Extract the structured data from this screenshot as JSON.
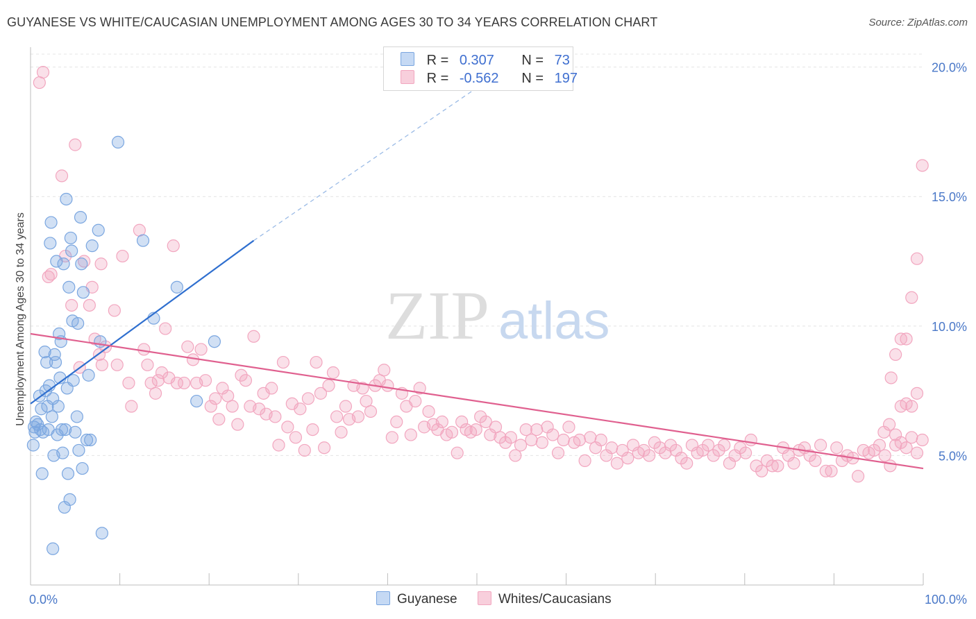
{
  "header": {
    "title": "GUYANESE VS WHITE/CAUCASIAN UNEMPLOYMENT AMONG AGES 30 TO 34 YEARS CORRELATION CHART",
    "source": "Source: ZipAtlas.com"
  },
  "watermark": {
    "zip": "ZIP",
    "atlas": "atlas"
  },
  "legend": {
    "rows": [
      {
        "r_label": "R =",
        "r_value": "0.307",
        "n_label": "N =",
        "n_value": "73",
        "color": "#a9c6ee"
      },
      {
        "r_label": "R =",
        "r_value": "-0.562",
        "n_label": "N =",
        "n_value": "197",
        "color": "#f4b7cb"
      }
    ]
  },
  "bottom_legend": [
    {
      "label": "Guyanese",
      "color": "#a9c6ee"
    },
    {
      "label": "Whites/Caucasians",
      "color": "#f4b7cb"
    }
  ],
  "chart_data": {
    "type": "scatter",
    "xlabel": "",
    "ylabel": "Unemployment Among Ages 30 to 34 years",
    "xlim": [
      0,
      100
    ],
    "ylim": [
      0,
      20.5
    ],
    "x_tick_labels": [
      "0.0%",
      "100.0%"
    ],
    "y_ticks": [
      5,
      10,
      15,
      20
    ],
    "y_tick_labels": [
      "5.0%",
      "10.0%",
      "15.0%",
      "20.0%"
    ],
    "grid": true,
    "series": [
      {
        "name": "Guyanese",
        "color": "#7aa6e0",
        "line_color": "#2f6fcf",
        "trend": {
          "x0": 0,
          "y0": 7.0,
          "x1": 25,
          "y1": 13.3,
          "dash_to_x": 50,
          "dash_to_y": 19.2
        },
        "points": [
          [
            0.3,
            5.4
          ],
          [
            0.4,
            6.1
          ],
          [
            0.5,
            5.9
          ],
          [
            0.6,
            6.3
          ],
          [
            0.8,
            6.2
          ],
          [
            1.0,
            7.3
          ],
          [
            1.1,
            6.0
          ],
          [
            1.2,
            6.8
          ],
          [
            1.3,
            4.3
          ],
          [
            1.4,
            5.9
          ],
          [
            1.6,
            9.0
          ],
          [
            1.7,
            7.5
          ],
          [
            1.8,
            8.6
          ],
          [
            1.9,
            6.9
          ],
          [
            2.0,
            6.0
          ],
          [
            2.1,
            7.7
          ],
          [
            2.2,
            13.2
          ],
          [
            2.3,
            14.0
          ],
          [
            2.4,
            6.5
          ],
          [
            2.5,
            7.2
          ],
          [
            2.5,
            1.4
          ],
          [
            2.6,
            5.0
          ],
          [
            2.7,
            8.9
          ],
          [
            2.8,
            8.6
          ],
          [
            2.9,
            12.5
          ],
          [
            3.0,
            5.8
          ],
          [
            3.1,
            6.9
          ],
          [
            3.2,
            9.7
          ],
          [
            3.3,
            8.0
          ],
          [
            3.4,
            9.4
          ],
          [
            3.5,
            6.0
          ],
          [
            3.6,
            5.1
          ],
          [
            3.7,
            12.4
          ],
          [
            3.8,
            3.0
          ],
          [
            3.9,
            6.0
          ],
          [
            4.0,
            14.9
          ],
          [
            4.1,
            7.6
          ],
          [
            4.2,
            4.3
          ],
          [
            4.3,
            11.5
          ],
          [
            4.4,
            3.3
          ],
          [
            4.5,
            13.4
          ],
          [
            4.6,
            12.9
          ],
          [
            4.7,
            10.2
          ],
          [
            4.8,
            7.9
          ],
          [
            5.0,
            5.9
          ],
          [
            5.2,
            6.5
          ],
          [
            5.3,
            10.1
          ],
          [
            5.4,
            5.2
          ],
          [
            5.6,
            14.2
          ],
          [
            5.7,
            12.4
          ],
          [
            5.8,
            4.5
          ],
          [
            5.9,
            11.3
          ],
          [
            6.3,
            5.6
          ],
          [
            6.5,
            8.1
          ],
          [
            6.7,
            5.6
          ],
          [
            6.9,
            13.1
          ],
          [
            7.6,
            13.7
          ],
          [
            7.8,
            9.4
          ],
          [
            8.0,
            2.0
          ],
          [
            9.8,
            17.1
          ],
          [
            12.6,
            13.3
          ],
          [
            13.8,
            10.3
          ],
          [
            16.4,
            11.5
          ],
          [
            18.6,
            7.1
          ],
          [
            20.6,
            9.4
          ]
        ]
      },
      {
        "name": "Whites/Caucasians",
        "color": "#f2a6bf",
        "line_color": "#e0608f",
        "trend": {
          "x0": 0,
          "y0": 9.7,
          "x1": 100,
          "y1": 4.5
        },
        "points": [
          [
            1.0,
            19.4
          ],
          [
            1.4,
            19.8
          ],
          [
            2.0,
            11.9
          ],
          [
            2.3,
            12.0
          ],
          [
            3.5,
            15.8
          ],
          [
            3.9,
            12.7
          ],
          [
            4.6,
            10.8
          ],
          [
            5.0,
            17.0
          ],
          [
            5.5,
            8.4
          ],
          [
            6.0,
            12.5
          ],
          [
            6.6,
            10.8
          ],
          [
            6.9,
            11.5
          ],
          [
            7.2,
            9.5
          ],
          [
            7.7,
            8.9
          ],
          [
            7.9,
            12.4
          ],
          [
            8.0,
            8.5
          ],
          [
            8.4,
            9.2
          ],
          [
            9.4,
            10.6
          ],
          [
            9.7,
            8.5
          ],
          [
            10.3,
            12.7
          ],
          [
            11.0,
            7.8
          ],
          [
            11.3,
            6.9
          ],
          [
            12.2,
            13.7
          ],
          [
            12.7,
            9.1
          ],
          [
            13.1,
            8.5
          ],
          [
            13.5,
            7.8
          ],
          [
            14.0,
            7.4
          ],
          [
            14.3,
            7.9
          ],
          [
            14.7,
            8.2
          ],
          [
            15.1,
            9.9
          ],
          [
            15.5,
            8.0
          ],
          [
            16.0,
            13.1
          ],
          [
            16.4,
            7.8
          ],
          [
            17.2,
            7.8
          ],
          [
            17.6,
            9.2
          ],
          [
            18.2,
            8.7
          ],
          [
            18.6,
            7.8
          ],
          [
            19.1,
            9.1
          ],
          [
            19.6,
            7.9
          ],
          [
            20.2,
            6.9
          ],
          [
            20.7,
            7.2
          ],
          [
            21.1,
            6.4
          ],
          [
            21.5,
            7.6
          ],
          [
            22.1,
            7.3
          ],
          [
            22.6,
            6.9
          ],
          [
            23.2,
            6.2
          ],
          [
            23.6,
            8.1
          ],
          [
            24.1,
            7.9
          ],
          [
            24.6,
            6.9
          ],
          [
            25.0,
            9.6
          ],
          [
            25.6,
            6.8
          ],
          [
            26.1,
            7.4
          ],
          [
            26.4,
            6.6
          ],
          [
            27.0,
            7.6
          ],
          [
            27.4,
            6.5
          ],
          [
            27.8,
            5.4
          ],
          [
            28.3,
            8.6
          ],
          [
            28.8,
            6.1
          ],
          [
            29.3,
            7.0
          ],
          [
            29.7,
            5.7
          ],
          [
            30.2,
            6.8
          ],
          [
            30.7,
            5.2
          ],
          [
            31.1,
            7.2
          ],
          [
            31.6,
            6.0
          ],
          [
            32.0,
            8.6
          ],
          [
            32.5,
            7.4
          ],
          [
            32.9,
            5.3
          ],
          [
            33.4,
            7.7
          ],
          [
            33.9,
            8.2
          ],
          [
            34.3,
            6.5
          ],
          [
            34.8,
            5.9
          ],
          [
            35.3,
            6.9
          ],
          [
            35.7,
            6.4
          ],
          [
            36.2,
            7.7
          ],
          [
            36.7,
            6.5
          ],
          [
            37.2,
            7.6
          ],
          [
            37.6,
            7.1
          ],
          [
            38.1,
            6.7
          ],
          [
            38.6,
            7.7
          ],
          [
            39.1,
            7.9
          ],
          [
            39.6,
            8.3
          ],
          [
            40.0,
            7.7
          ],
          [
            40.5,
            5.7
          ],
          [
            41.0,
            6.3
          ],
          [
            41.6,
            7.4
          ],
          [
            42.1,
            6.9
          ],
          [
            42.6,
            5.8
          ],
          [
            43.1,
            7.1
          ],
          [
            43.6,
            7.6
          ],
          [
            44.1,
            6.1
          ],
          [
            44.6,
            6.7
          ],
          [
            45.1,
            6.2
          ],
          [
            45.6,
            6.0
          ],
          [
            46.1,
            6.3
          ],
          [
            46.6,
            5.8
          ],
          [
            47.2,
            5.9
          ],
          [
            47.8,
            5.1
          ],
          [
            48.3,
            6.3
          ],
          [
            48.8,
            6.0
          ],
          [
            49.3,
            5.9
          ],
          [
            49.9,
            6.0
          ],
          [
            50.4,
            6.5
          ],
          [
            51.0,
            6.3
          ],
          [
            51.5,
            5.8
          ],
          [
            52.1,
            6.1
          ],
          [
            52.6,
            5.7
          ],
          [
            53.2,
            5.5
          ],
          [
            53.8,
            5.7
          ],
          [
            54.3,
            5.0
          ],
          [
            54.9,
            5.4
          ],
          [
            55.5,
            6.0
          ],
          [
            56.1,
            5.6
          ],
          [
            56.7,
            6.0
          ],
          [
            57.3,
            5.5
          ],
          [
            57.9,
            6.1
          ],
          [
            58.5,
            5.8
          ],
          [
            59.1,
            5.1
          ],
          [
            59.7,
            5.6
          ],
          [
            60.3,
            6.1
          ],
          [
            60.9,
            5.5
          ],
          [
            61.5,
            5.6
          ],
          [
            62.1,
            4.8
          ],
          [
            62.7,
            5.7
          ],
          [
            63.3,
            5.3
          ],
          [
            63.9,
            5.6
          ],
          [
            64.5,
            5.0
          ],
          [
            65.1,
            5.3
          ],
          [
            65.7,
            4.7
          ],
          [
            66.3,
            5.2
          ],
          [
            66.9,
            4.9
          ],
          [
            67.5,
            5.4
          ],
          [
            68.1,
            5.1
          ],
          [
            68.7,
            5.2
          ],
          [
            69.3,
            5.0
          ],
          [
            69.9,
            5.5
          ],
          [
            70.5,
            5.3
          ],
          [
            71.1,
            5.1
          ],
          [
            71.7,
            5.4
          ],
          [
            72.3,
            5.2
          ],
          [
            72.9,
            4.9
          ],
          [
            73.5,
            4.7
          ],
          [
            74.1,
            5.4
          ],
          [
            74.7,
            5.1
          ],
          [
            75.3,
            5.2
          ],
          [
            75.9,
            5.4
          ],
          [
            76.5,
            5.0
          ],
          [
            77.1,
            5.2
          ],
          [
            77.7,
            5.4
          ],
          [
            78.3,
            4.7
          ],
          [
            78.9,
            5.0
          ],
          [
            79.5,
            5.3
          ],
          [
            80.1,
            5.1
          ],
          [
            80.7,
            5.6
          ],
          [
            81.3,
            4.6
          ],
          [
            81.9,
            4.4
          ],
          [
            82.5,
            4.8
          ],
          [
            83.1,
            4.6
          ],
          [
            83.7,
            4.6
          ],
          [
            84.3,
            5.3
          ],
          [
            84.9,
            5.0
          ],
          [
            85.5,
            4.7
          ],
          [
            86.1,
            5.2
          ],
          [
            86.7,
            5.3
          ],
          [
            87.3,
            5.0
          ],
          [
            87.9,
            4.8
          ],
          [
            88.5,
            5.4
          ],
          [
            89.1,
            4.4
          ],
          [
            89.7,
            4.4
          ],
          [
            90.3,
            5.3
          ],
          [
            90.9,
            4.8
          ],
          [
            91.5,
            5.0
          ],
          [
            92.1,
            4.9
          ],
          [
            92.7,
            4.2
          ],
          [
            93.3,
            5.2
          ],
          [
            93.9,
            5.1
          ],
          [
            94.5,
            5.2
          ],
          [
            95.1,
            5.4
          ],
          [
            95.7,
            5.0
          ],
          [
            96.3,
            4.6
          ],
          [
            96.9,
            5.4
          ],
          [
            97.5,
            5.5
          ],
          [
            98.1,
            5.3
          ],
          [
            98.7,
            5.7
          ],
          [
            99.3,
            5.1
          ],
          [
            99.9,
            5.6
          ],
          [
            95.6,
            5.9
          ],
          [
            96.2,
            6.2
          ],
          [
            96.9,
            5.8
          ],
          [
            97.5,
            6.9
          ],
          [
            98.1,
            7.0
          ],
          [
            98.7,
            6.9
          ],
          [
            99.3,
            7.4
          ],
          [
            96.4,
            8.0
          ],
          [
            96.9,
            8.9
          ],
          [
            97.5,
            9.5
          ],
          [
            98.1,
            9.5
          ],
          [
            98.7,
            11.1
          ],
          [
            99.3,
            12.6
          ],
          [
            99.9,
            16.2
          ]
        ]
      }
    ]
  }
}
